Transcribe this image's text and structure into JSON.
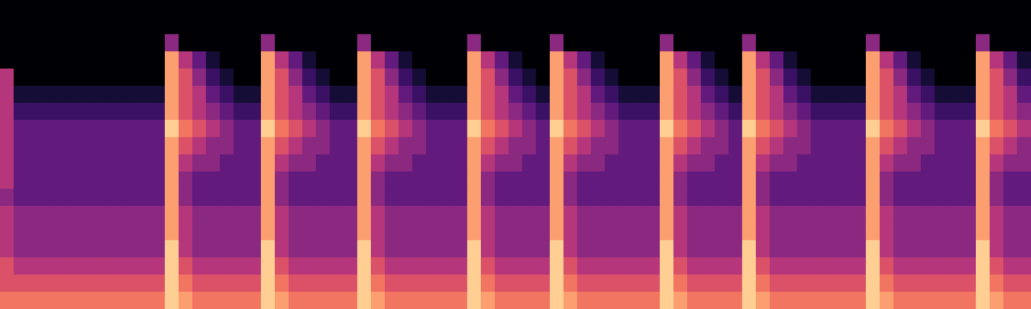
{
  "chart_data": {
    "type": "heatmap",
    "tick_labels": false,
    "color_range": [
      0,
      10
    ],
    "cells": [
      [
        0,
        0,
        0,
        0,
        0,
        0,
        0,
        0,
        0,
        0,
        0,
        0,
        0,
        0,
        0,
        0,
        0,
        0,
        0,
        0,
        0,
        0,
        0,
        0,
        0,
        0,
        0,
        0,
        0,
        0,
        0,
        0,
        0,
        0,
        0,
        0,
        0,
        0,
        0,
        0,
        0,
        0,
        0,
        0,
        0,
        0,
        0,
        0,
        0,
        0,
        0,
        0,
        0,
        0,
        0,
        0,
        0,
        0,
        0,
        0,
        0,
        0,
        0,
        0,
        0,
        0,
        0,
        0,
        0,
        0,
        0,
        0,
        0,
        0,
        0
      ],
      [
        0,
        0,
        0,
        0,
        0,
        0,
        0,
        0,
        0,
        0,
        0,
        0,
        0,
        0,
        0,
        0,
        0,
        0,
        0,
        0,
        0,
        0,
        0,
        0,
        0,
        0,
        0,
        0,
        0,
        0,
        0,
        0,
        0,
        0,
        0,
        0,
        0,
        0,
        0,
        0,
        0,
        0,
        0,
        0,
        0,
        0,
        0,
        0,
        0,
        0,
        0,
        0,
        0,
        0,
        0,
        0,
        0,
        0,
        0,
        0,
        0,
        0,
        0,
        0,
        0,
        0,
        0,
        0,
        0,
        0,
        0,
        0,
        0,
        0,
        0
      ],
      [
        0,
        0,
        0,
        0,
        0,
        0,
        0,
        0,
        0,
        0,
        0,
        0,
        4,
        0,
        0,
        0,
        0,
        0,
        0,
        4,
        0,
        0,
        0,
        0,
        0,
        0,
        4,
        0,
        0,
        0,
        0,
        0,
        0,
        0,
        4,
        0,
        0,
        0,
        0,
        0,
        4,
        0,
        0,
        0,
        0,
        0,
        0,
        0,
        4,
        0,
        0,
        0,
        0,
        0,
        4,
        0,
        0,
        0,
        0,
        0,
        0,
        0,
        0,
        4,
        0,
        0,
        0,
        0,
        0,
        0,
        0,
        4,
        0,
        0,
        0
      ],
      [
        0,
        0,
        0,
        0,
        0,
        0,
        0,
        0,
        0,
        0,
        0,
        0,
        8,
        5,
        3,
        1,
        0,
        0,
        0,
        8,
        5,
        3,
        1,
        0,
        0,
        0,
        8,
        5,
        3,
        1,
        0,
        0,
        0,
        0,
        8,
        5,
        3,
        1,
        0,
        0,
        8,
        5,
        3,
        1,
        0,
        0,
        0,
        0,
        8,
        5,
        3,
        1,
        0,
        0,
        8,
        5,
        3,
        1,
        0,
        0,
        0,
        0,
        0,
        8,
        5,
        3,
        1,
        0,
        0,
        0,
        0,
        8,
        5,
        3,
        1
      ],
      [
        5,
        0,
        0,
        0,
        0,
        0,
        0,
        0,
        0,
        0,
        0,
        0,
        8,
        6,
        4,
        2,
        1,
        0,
        0,
        8,
        6,
        4,
        2,
        1,
        0,
        0,
        8,
        6,
        4,
        2,
        1,
        0,
        0,
        0,
        8,
        6,
        4,
        2,
        1,
        0,
        8,
        6,
        4,
        2,
        1,
        0,
        0,
        0,
        8,
        6,
        4,
        2,
        1,
        0,
        8,
        6,
        4,
        2,
        1,
        0,
        0,
        0,
        0,
        8,
        6,
        4,
        2,
        1,
        0,
        0,
        0,
        8,
        6,
        4,
        2
      ],
      [
        5,
        1,
        1,
        1,
        1,
        1,
        1,
        1,
        1,
        1,
        1,
        1,
        8,
        6,
        5,
        3,
        2,
        1,
        1,
        8,
        6,
        5,
        3,
        2,
        1,
        1,
        8,
        6,
        5,
        3,
        2,
        1,
        1,
        1,
        8,
        6,
        5,
        3,
        2,
        1,
        8,
        6,
        5,
        3,
        2,
        1,
        1,
        1,
        8,
        6,
        5,
        3,
        2,
        1,
        8,
        6,
        5,
        3,
        2,
        1,
        1,
        1,
        1,
        8,
        6,
        5,
        3,
        2,
        1,
        1,
        1,
        8,
        6,
        5,
        3
      ],
      [
        5,
        2,
        2,
        2,
        2,
        2,
        2,
        2,
        2,
        2,
        2,
        2,
        8,
        6,
        5,
        4,
        3,
        2,
        2,
        8,
        6,
        5,
        4,
        3,
        2,
        2,
        8,
        6,
        5,
        4,
        3,
        2,
        2,
        2,
        8,
        6,
        5,
        4,
        3,
        2,
        8,
        6,
        5,
        4,
        3,
        2,
        2,
        2,
        8,
        6,
        5,
        4,
        3,
        2,
        8,
        6,
        5,
        4,
        3,
        2,
        2,
        2,
        2,
        8,
        6,
        5,
        4,
        3,
        2,
        2,
        2,
        8,
        6,
        5,
        4
      ],
      [
        5,
        3,
        3,
        3,
        3,
        3,
        3,
        3,
        3,
        3,
        3,
        3,
        9,
        7,
        6,
        5,
        4,
        3,
        3,
        9,
        7,
        6,
        5,
        4,
        3,
        3,
        9,
        7,
        6,
        5,
        4,
        3,
        3,
        3,
        9,
        7,
        6,
        5,
        4,
        3,
        9,
        7,
        6,
        5,
        4,
        3,
        3,
        3,
        9,
        7,
        6,
        5,
        4,
        3,
        9,
        7,
        6,
        5,
        4,
        3,
        3,
        3,
        3,
        9,
        7,
        6,
        5,
        4,
        3,
        3,
        3,
        9,
        7,
        6,
        5
      ],
      [
        5,
        3,
        3,
        3,
        3,
        3,
        3,
        3,
        3,
        3,
        3,
        3,
        8,
        6,
        5,
        4,
        4,
        3,
        3,
        8,
        6,
        5,
        4,
        4,
        3,
        3,
        8,
        6,
        5,
        4,
        4,
        3,
        3,
        3,
        8,
        6,
        5,
        4,
        4,
        3,
        8,
        6,
        5,
        4,
        4,
        3,
        3,
        3,
        8,
        6,
        5,
        4,
        4,
        3,
        8,
        6,
        5,
        4,
        4,
        3,
        3,
        3,
        3,
        8,
        6,
        5,
        4,
        4,
        3,
        3,
        3,
        8,
        6,
        5,
        4
      ],
      [
        5,
        3,
        3,
        3,
        3,
        3,
        3,
        3,
        3,
        3,
        3,
        3,
        8,
        5,
        4,
        4,
        3,
        3,
        3,
        8,
        5,
        4,
        4,
        3,
        3,
        3,
        8,
        5,
        4,
        4,
        3,
        3,
        3,
        3,
        8,
        5,
        4,
        4,
        3,
        3,
        8,
        5,
        4,
        4,
        3,
        3,
        3,
        3,
        8,
        5,
        4,
        4,
        3,
        3,
        8,
        5,
        4,
        4,
        3,
        3,
        3,
        3,
        3,
        8,
        5,
        4,
        4,
        3,
        3,
        3,
        3,
        8,
        5,
        4,
        4
      ],
      [
        5,
        3,
        3,
        3,
        3,
        3,
        3,
        3,
        3,
        3,
        3,
        3,
        8,
        4,
        3,
        3,
        3,
        3,
        3,
        8,
        4,
        3,
        3,
        3,
        3,
        3,
        8,
        4,
        3,
        3,
        3,
        3,
        3,
        3,
        8,
        4,
        3,
        3,
        3,
        3,
        8,
        4,
        3,
        3,
        3,
        3,
        3,
        3,
        8,
        4,
        3,
        3,
        3,
        3,
        8,
        4,
        3,
        3,
        3,
        3,
        3,
        3,
        3,
        8,
        4,
        3,
        3,
        3,
        3,
        3,
        3,
        8,
        4,
        3,
        3
      ],
      [
        4,
        3,
        3,
        3,
        3,
        3,
        3,
        3,
        3,
        3,
        3,
        3,
        8,
        4,
        3,
        3,
        3,
        3,
        3,
        8,
        4,
        3,
        3,
        3,
        3,
        3,
        8,
        4,
        3,
        3,
        3,
        3,
        3,
        3,
        8,
        4,
        3,
        3,
        3,
        3,
        8,
        4,
        3,
        3,
        3,
        3,
        3,
        3,
        8,
        4,
        3,
        3,
        3,
        3,
        8,
        4,
        3,
        3,
        3,
        3,
        3,
        3,
        3,
        8,
        4,
        3,
        3,
        3,
        3,
        3,
        3,
        8,
        4,
        3,
        3
      ],
      [
        5,
        4,
        4,
        4,
        4,
        4,
        4,
        4,
        4,
        4,
        4,
        4,
        8,
        5,
        4,
        4,
        4,
        4,
        4,
        8,
        5,
        4,
        4,
        4,
        4,
        4,
        8,
        5,
        4,
        4,
        4,
        4,
        4,
        4,
        8,
        5,
        4,
        4,
        4,
        4,
        8,
        5,
        4,
        4,
        4,
        4,
        4,
        4,
        8,
        5,
        4,
        4,
        4,
        4,
        8,
        5,
        4,
        4,
        4,
        4,
        4,
        4,
        4,
        8,
        5,
        4,
        4,
        4,
        4,
        4,
        4,
        8,
        5,
        4,
        4
      ],
      [
        5,
        4,
        4,
        4,
        4,
        4,
        4,
        4,
        4,
        4,
        4,
        4,
        8,
        5,
        4,
        4,
        4,
        4,
        4,
        8,
        5,
        4,
        4,
        4,
        4,
        4,
        8,
        5,
        4,
        4,
        4,
        4,
        4,
        4,
        8,
        5,
        4,
        4,
        4,
        4,
        8,
        5,
        4,
        4,
        4,
        4,
        4,
        4,
        8,
        5,
        4,
        4,
        4,
        4,
        8,
        5,
        4,
        4,
        4,
        4,
        4,
        4,
        4,
        8,
        5,
        4,
        4,
        4,
        4,
        4,
        4,
        8,
        5,
        4,
        4
      ],
      [
        5,
        4,
        4,
        4,
        4,
        4,
        4,
        4,
        4,
        4,
        4,
        4,
        9,
        5,
        4,
        4,
        4,
        4,
        4,
        9,
        5,
        4,
        4,
        4,
        4,
        4,
        9,
        5,
        4,
        4,
        4,
        4,
        4,
        4,
        9,
        5,
        4,
        4,
        4,
        4,
        9,
        5,
        4,
        4,
        4,
        4,
        4,
        4,
        9,
        5,
        4,
        4,
        4,
        4,
        9,
        5,
        4,
        4,
        4,
        4,
        4,
        4,
        4,
        9,
        5,
        4,
        4,
        4,
        4,
        4,
        4,
        9,
        5,
        4,
        4
      ],
      [
        6,
        5,
        5,
        5,
        5,
        5,
        5,
        5,
        5,
        5,
        5,
        5,
        9,
        6,
        5,
        5,
        5,
        5,
        5,
        9,
        6,
        5,
        5,
        5,
        5,
        5,
        9,
        6,
        5,
        5,
        5,
        5,
        5,
        5,
        9,
        6,
        5,
        5,
        5,
        5,
        9,
        6,
        5,
        5,
        5,
        5,
        5,
        5,
        9,
        6,
        5,
        5,
        5,
        5,
        9,
        6,
        5,
        5,
        5,
        5,
        5,
        5,
        5,
        9,
        6,
        5,
        5,
        5,
        5,
        5,
        5,
        9,
        6,
        5,
        5
      ],
      [
        6,
        6,
        6,
        6,
        6,
        6,
        6,
        6,
        6,
        6,
        6,
        6,
        9,
        7,
        6,
        6,
        6,
        6,
        6,
        9,
        7,
        6,
        6,
        6,
        6,
        6,
        9,
        7,
        6,
        6,
        6,
        6,
        6,
        6,
        9,
        7,
        6,
        6,
        6,
        6,
        9,
        7,
        6,
        6,
        6,
        6,
        6,
        6,
        9,
        7,
        6,
        6,
        6,
        6,
        9,
        7,
        6,
        6,
        6,
        6,
        6,
        6,
        6,
        9,
        7,
        6,
        6,
        6,
        6,
        6,
        6,
        9,
        7,
        6,
        6
      ],
      [
        7,
        7,
        7,
        7,
        7,
        7,
        7,
        7,
        7,
        7,
        7,
        7,
        9,
        8,
        7,
        7,
        7,
        7,
        7,
        9,
        8,
        7,
        7,
        7,
        7,
        7,
        9,
        8,
        7,
        7,
        7,
        7,
        7,
        7,
        9,
        8,
        7,
        7,
        7,
        7,
        9,
        8,
        7,
        7,
        7,
        7,
        7,
        7,
        9,
        8,
        7,
        7,
        7,
        7,
        9,
        8,
        7,
        7,
        7,
        7,
        7,
        7,
        7,
        9,
        8,
        7,
        7,
        7,
        7,
        7,
        7,
        9,
        8,
        7,
        7
      ]
    ]
  }
}
